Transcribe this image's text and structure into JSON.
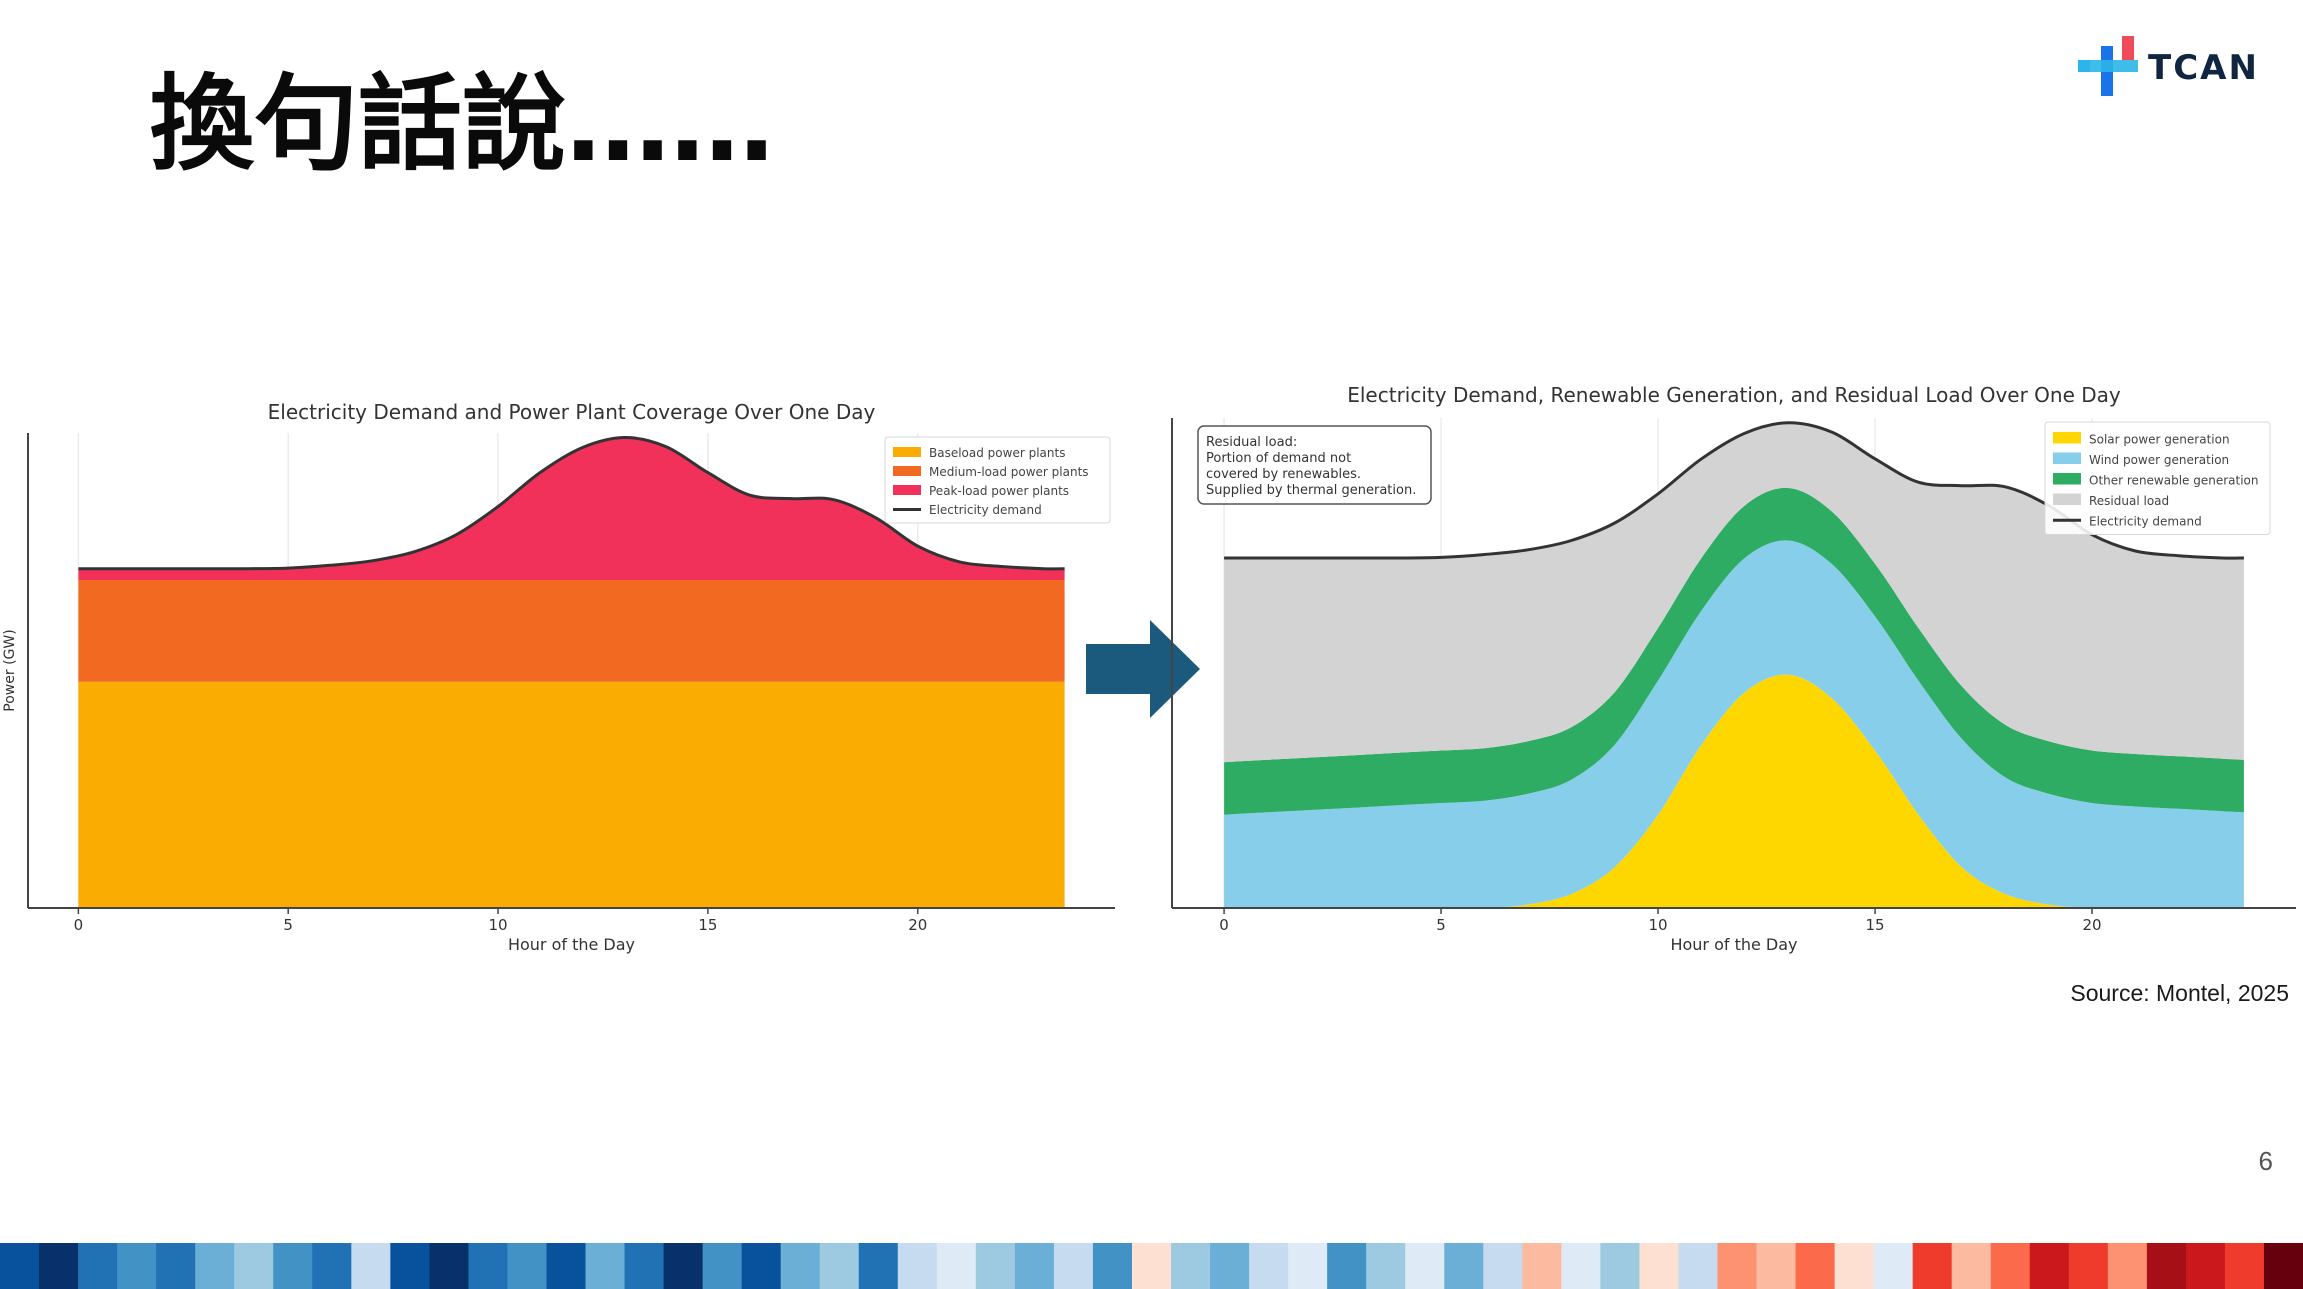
{
  "slide": {
    "title": "換句話說……",
    "logo_text": "TCAN",
    "source": "Source: Montel, 2025",
    "page_number": "6"
  },
  "colors": {
    "baseload": "#FBAC03",
    "medium": "#F26A22",
    "peak": "#F2315A",
    "demand": "#333333",
    "solar": "#FFD700",
    "wind": "#87CEEB",
    "other_renewable": "#2EAC63",
    "residual": "#D3D3D3",
    "arrow": "#1C5A7D",
    "stripes": [
      "#08306b",
      "#08519c",
      "#2171b5",
      "#4292c6",
      "#6baed6",
      "#9ecae1",
      "#c6dbef",
      "#deebf7",
      "#fee0d2",
      "#fcbba1",
      "#fc9272",
      "#fb6a4a",
      "#ef3b2c",
      "#cb181d",
      "#a50f15",
      "#67000d"
    ]
  },
  "chart_data": [
    {
      "type": "area",
      "title": "Electricity Demand and Power Plant Coverage Over One Day",
      "xlabel": "Hour of the Day",
      "ylabel": "Power (GW)",
      "xlim": [
        -1.2,
        24.7
      ],
      "ylim": [
        0,
        42
      ],
      "xticks": [
        0,
        5,
        10,
        15,
        20
      ],
      "grid": true,
      "legend_position": "top-right",
      "x": [
        0,
        1,
        2,
        3,
        4,
        5,
        6,
        7,
        8,
        9,
        10,
        11,
        12,
        13,
        14,
        15,
        16,
        17,
        18,
        19,
        20,
        21,
        22,
        23,
        23.5
      ],
      "series": [
        {
          "name": "Baseload power plants",
          "color_key": "baseload",
          "stack": true,
          "values": [
            20,
            20,
            20,
            20,
            20,
            20,
            20,
            20,
            20,
            20,
            20,
            20,
            20,
            20,
            20,
            20,
            20,
            20,
            20,
            20,
            20,
            20,
            20,
            20,
            20
          ]
        },
        {
          "name": "Medium-load power plants",
          "color_key": "medium",
          "stack": true,
          "values": [
            9,
            9,
            9,
            9,
            9,
            9,
            9,
            9,
            9,
            9,
            9,
            9,
            9,
            9,
            9,
            9,
            9,
            9,
            9,
            9,
            9,
            9,
            9,
            9,
            9
          ]
        },
        {
          "name": "Peak-load power plants",
          "color_key": "peak",
          "stack": true,
          "values": [
            1,
            1,
            1,
            1,
            1,
            1.05,
            1.3,
            1.7,
            2.5,
            4,
            6.5,
            9.5,
            11.7,
            12.6,
            11.8,
            9.5,
            7.5,
            7.2,
            7.1,
            5.5,
            3,
            1.6,
            1.2,
            1,
            1
          ]
        },
        {
          "name": "Electricity demand",
          "color_key": "demand",
          "line": true,
          "values": [
            30,
            30,
            30,
            30,
            30,
            30.05,
            30.3,
            30.7,
            31.5,
            33,
            35.5,
            38.5,
            40.7,
            41.6,
            40.8,
            38.5,
            36.5,
            36.2,
            36.1,
            34.5,
            32,
            30.6,
            30.2,
            30,
            30
          ]
        }
      ]
    },
    {
      "type": "area",
      "title": "Electricity Demand, Renewable Generation, and Residual Load Over One Day",
      "xlabel": "Hour of the Day",
      "ylabel": "",
      "xlim": [
        -1.2,
        24.7
      ],
      "ylim": [
        0,
        42
      ],
      "xticks": [
        0,
        5,
        10,
        15,
        20
      ],
      "grid": true,
      "legend_position": "top-right",
      "annotation": [
        "Residual load:",
        "Portion of demand not",
        "covered by renewables.",
        "Supplied by thermal generation."
      ],
      "x": [
        0,
        1,
        2,
        3,
        4,
        5,
        6,
        7,
        8,
        9,
        10,
        11,
        12,
        13,
        14,
        15,
        16,
        17,
        18,
        19,
        20,
        21,
        22,
        23,
        23.5
      ],
      "series": [
        {
          "name": "Solar power generation",
          "color_key": "solar",
          "stack": true,
          "values": [
            0,
            0,
            0,
            0,
            0,
            0,
            0,
            0.3,
            1.2,
            3.5,
            8,
            14,
            18.5,
            20,
            18,
            13.5,
            8,
            3.5,
            1.2,
            0.3,
            0,
            0,
            0,
            0,
            0
          ]
        },
        {
          "name": "Wind power generation",
          "color_key": "wind",
          "stack": true,
          "values": [
            8,
            8.2,
            8.4,
            8.6,
            8.8,
            9,
            9.2,
            9.5,
            9.8,
            10.5,
            11.5,
            11.5,
            11.5,
            11.5,
            11.5,
            11.5,
            11.5,
            11,
            10,
            9.5,
            9,
            8.7,
            8.5,
            8.3,
            8.2
          ]
        },
        {
          "name": "Other renewable generation",
          "color_key": "other_renewable",
          "stack": true,
          "values": [
            4.5,
            4.5,
            4.5,
            4.5,
            4.5,
            4.5,
            4.5,
            4.5,
            4.5,
            4.5,
            4.5,
            4.5,
            4.5,
            4.5,
            4.5,
            4.5,
            4.5,
            4.5,
            4.5,
            4.5,
            4.5,
            4.5,
            4.5,
            4.5,
            4.5
          ]
        },
        {
          "name": "Residual load",
          "color_key": "residual",
          "stack": true,
          "values": [
            17.5,
            17.3,
            17.1,
            16.9,
            16.7,
            16.55,
            16.6,
            16.4,
            16,
            14.5,
            11.5,
            8.5,
            6.2,
            5.6,
            6.8,
            9,
            12.5,
            17.2,
            20.4,
            20.2,
            18.5,
            17.4,
            17.2,
            17.2,
            17.3
          ]
        },
        {
          "name": "Electricity demand",
          "color_key": "demand",
          "line": true,
          "values": [
            30,
            30,
            30,
            30,
            30,
            30.05,
            30.3,
            30.7,
            31.5,
            33,
            35.5,
            38.5,
            40.7,
            41.6,
            40.8,
            38.5,
            36.5,
            36.2,
            36.1,
            34.5,
            32,
            30.6,
            30.2,
            30,
            30
          ]
        }
      ]
    }
  ]
}
